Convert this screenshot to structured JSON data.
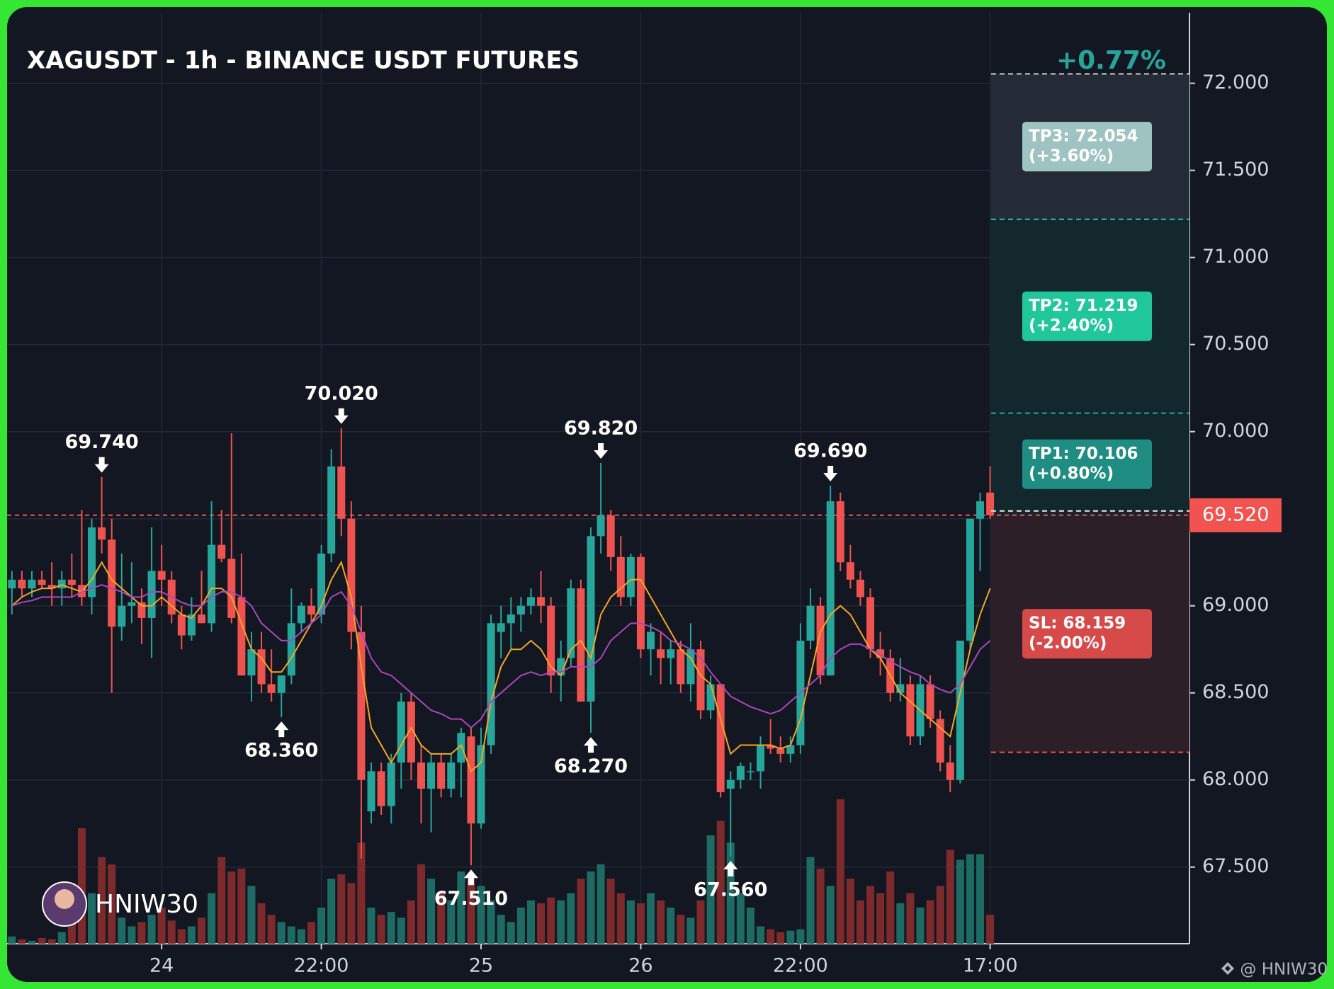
{
  "chart_data": {
    "type": "candlestick",
    "title": "XAGUSDT - 1h - BINANCE USDT FUTURES",
    "change": "+0.77%",
    "categories": [
      null,
      null,
      null,
      null,
      null,
      null,
      null,
      null,
      null,
      null,
      null,
      null,
      null,
      null,
      null,
      "24",
      null,
      null,
      null,
      null,
      null,
      null,
      null,
      null,
      null,
      null,
      null,
      null,
      null,
      null,
      null,
      "22:00",
      null,
      null,
      null,
      null,
      null,
      null,
      null,
      null,
      null,
      null,
      null,
      null,
      null,
      null,
      null,
      "25",
      null,
      null,
      null,
      null,
      null,
      null,
      null,
      null,
      null,
      null,
      null,
      null,
      null,
      null,
      null,
      "26",
      null,
      null,
      null,
      null,
      null,
      null,
      null,
      null,
      null,
      null,
      null,
      null,
      null,
      null,
      null,
      "22:00",
      null,
      null,
      null,
      null,
      null,
      null,
      null,
      null,
      null,
      null,
      null,
      null,
      null,
      null,
      null,
      null,
      null,
      null,
      "17:00"
    ],
    "open": [
      69.1,
      69.15,
      69.1,
      69.15,
      69.12,
      69.1,
      69.15,
      69.12,
      69.05,
      69.45,
      69.38,
      68.88,
      69.0,
      69.02,
      68.93,
      69.2,
      69.15,
      68.95,
      68.83,
      68.95,
      68.9,
      69.35,
      69.27,
      69.05,
      68.6,
      68.75,
      68.55,
      68.5,
      68.6,
      68.9,
      69.0,
      68.95,
      69.3,
      69.8,
      69.5,
      68.85,
      67.82,
      68.05,
      67.85,
      68.1,
      68.45,
      68.1,
      67.95,
      68.1,
      67.95,
      68.1,
      68.25,
      67.75,
      68.2,
      68.85,
      68.9,
      68.95,
      69.0,
      69.05,
      69.0,
      68.6,
      68.7,
      69.1,
      68.45,
      69.4,
      69.52,
      69.28,
      69.05,
      69.28,
      68.75,
      68.75,
      68.7,
      68.75,
      68.55,
      68.75,
      68.4,
      68.55,
      67.95,
      68.0,
      68.05,
      68.05,
      68.2,
      68.18,
      68.15,
      68.2,
      68.8,
      69.0,
      68.6,
      69.6,
      69.25,
      69.15,
      69.05,
      68.75,
      68.7,
      68.5,
      68.55,
      68.25,
      68.55,
      68.35,
      68.1,
      68.0,
      68.8,
      69.5,
      69.65
    ],
    "high": [
      69.2,
      69.2,
      69.2,
      69.2,
      69.25,
      69.2,
      69.3,
      69.55,
      69.5,
      69.74,
      69.5,
      69.3,
      69.25,
      69.1,
      69.45,
      69.35,
      69.2,
      69.0,
      69.05,
      69.2,
      69.6,
      69.55,
      69.99,
      69.3,
      68.85,
      68.85,
      68.75,
      68.6,
      69.1,
      69.02,
      69.1,
      69.35,
      69.9,
      70.02,
      69.6,
      69.0,
      68.1,
      68.1,
      68.15,
      68.5,
      68.5,
      68.2,
      68.15,
      68.15,
      68.15,
      68.3,
      68.3,
      68.3,
      68.95,
      69.0,
      69.05,
      69.05,
      69.1,
      69.2,
      69.05,
      68.8,
      69.15,
      69.15,
      69.45,
      69.82,
      69.55,
      69.4,
      69.3,
      69.3,
      68.9,
      68.85,
      68.8,
      68.8,
      68.9,
      68.8,
      68.6,
      68.55,
      68.05,
      68.1,
      68.1,
      68.25,
      68.35,
      68.25,
      68.25,
      68.9,
      69.1,
      69.05,
      69.69,
      69.65,
      69.35,
      69.2,
      69.1,
      68.85,
      68.75,
      68.7,
      68.6,
      68.6,
      68.6,
      68.4,
      68.2,
      68.8,
      69.5,
      69.65,
      69.8
    ],
    "low": [
      68.95,
      69.05,
      69.05,
      69.1,
      69.0,
      69.0,
      69.05,
      69.0,
      68.95,
      69.3,
      68.5,
      68.8,
      68.9,
      68.78,
      68.7,
      69.0,
      68.9,
      68.75,
      68.8,
      68.9,
      68.85,
      69.25,
      68.9,
      68.6,
      68.45,
      68.5,
      68.45,
      68.36,
      68.55,
      68.85,
      68.9,
      68.9,
      69.25,
      69.4,
      68.75,
      67.55,
      67.75,
      67.8,
      67.75,
      67.95,
      68.0,
      67.75,
      67.7,
      67.9,
      67.9,
      67.9,
      67.51,
      67.72,
      68.15,
      68.7,
      68.75,
      68.85,
      68.95,
      68.9,
      68.5,
      68.45,
      68.65,
      68.45,
      68.27,
      69.3,
      69.2,
      69.0,
      69.0,
      68.7,
      68.6,
      68.55,
      68.55,
      68.5,
      68.45,
      68.35,
      68.35,
      67.9,
      67.56,
      67.95,
      68.0,
      67.95,
      68.15,
      68.1,
      68.1,
      68.15,
      68.75,
      68.55,
      68.6,
      69.2,
      69.1,
      69.0,
      68.7,
      68.6,
      68.45,
      68.45,
      68.2,
      68.2,
      68.3,
      68.05,
      67.93,
      67.98,
      68.75,
      69.2,
      69.5
    ],
    "close": [
      69.15,
      69.1,
      69.15,
      69.12,
      69.1,
      69.15,
      69.12,
      69.05,
      69.45,
      69.38,
      68.88,
      69.0,
      69.02,
      68.93,
      69.2,
      69.15,
      68.95,
      68.83,
      68.95,
      68.9,
      69.35,
      69.27,
      68.93,
      68.6,
      68.75,
      68.55,
      68.5,
      68.6,
      68.9,
      69.0,
      68.95,
      69.3,
      69.8,
      69.5,
      68.85,
      68.0,
      68.05,
      67.85,
      68.1,
      68.45,
      68.1,
      67.95,
      68.1,
      67.95,
      68.1,
      68.27,
      67.75,
      68.2,
      68.9,
      68.9,
      68.95,
      69.0,
      69.05,
      69.0,
      68.6,
      68.7,
      69.1,
      68.45,
      69.4,
      69.52,
      69.28,
      69.05,
      69.28,
      68.75,
      68.85,
      68.7,
      68.75,
      68.55,
      68.75,
      68.4,
      68.55,
      67.93,
      68.0,
      68.08,
      68.05,
      68.2,
      68.18,
      68.15,
      68.2,
      68.8,
      69.0,
      68.6,
      69.6,
      69.25,
      69.15,
      69.05,
      68.75,
      68.7,
      68.5,
      68.55,
      68.25,
      68.55,
      68.35,
      68.1,
      68.0,
      68.8,
      69.5,
      69.6,
      69.52
    ],
    "up_color": "#26a69a",
    "down_color": "#ef5350",
    "ma": [
      {
        "color": "#f5a623",
        "values": [
          69.0,
          69.05,
          69.08,
          69.1,
          69.1,
          69.12,
          69.1,
          69.08,
          69.15,
          69.25,
          69.15,
          69.1,
          69.05,
          69.0,
          69.0,
          69.05,
          69.0,
          68.95,
          68.93,
          69.0,
          69.1,
          69.1,
          69.05,
          68.9,
          68.75,
          68.7,
          68.62,
          68.62,
          68.7,
          68.8,
          68.9,
          69.0,
          69.15,
          69.25,
          69.05,
          68.65,
          68.3,
          68.2,
          68.1,
          68.2,
          68.3,
          68.2,
          68.15,
          68.15,
          68.15,
          68.2,
          68.05,
          68.1,
          68.45,
          68.65,
          68.75,
          68.75,
          68.8,
          68.75,
          68.65,
          68.6,
          68.75,
          68.8,
          68.7,
          68.95,
          69.05,
          69.1,
          69.15,
          69.15,
          69.05,
          68.95,
          68.85,
          68.75,
          68.7,
          68.6,
          68.55,
          68.35,
          68.15,
          68.2,
          68.2,
          68.2,
          68.2,
          68.18,
          68.2,
          68.35,
          68.6,
          68.85,
          68.95,
          69.0,
          68.95,
          68.85,
          68.75,
          68.7,
          68.6,
          68.5,
          68.45,
          68.4,
          68.35,
          68.3,
          68.25,
          68.5,
          68.75,
          68.95,
          69.1
        ]
      },
      {
        "color": "#ab47bc",
        "values": [
          69.0,
          69.02,
          69.03,
          69.05,
          69.05,
          69.05,
          69.05,
          69.08,
          69.1,
          69.12,
          69.1,
          69.08,
          69.05,
          69.05,
          69.08,
          69.08,
          69.05,
          69.02,
          69.0,
          69.0,
          69.05,
          69.08,
          69.08,
          69.05,
          69.0,
          68.9,
          68.85,
          68.8,
          68.8,
          68.85,
          68.9,
          68.95,
          69.05,
          69.08,
          69.0,
          68.85,
          68.7,
          68.62,
          68.6,
          68.55,
          68.5,
          68.45,
          68.4,
          68.38,
          68.35,
          68.35,
          68.3,
          68.35,
          68.45,
          68.5,
          68.55,
          68.6,
          68.62,
          68.6,
          68.62,
          68.62,
          68.65,
          68.65,
          68.65,
          68.7,
          68.8,
          68.85,
          68.9,
          68.9,
          68.88,
          68.85,
          68.8,
          68.78,
          68.75,
          68.7,
          68.62,
          68.55,
          68.48,
          68.45,
          68.42,
          68.4,
          68.38,
          68.4,
          68.45,
          68.5,
          68.55,
          68.6,
          68.7,
          68.75,
          68.78,
          68.78,
          68.75,
          68.72,
          68.68,
          68.65,
          68.62,
          68.6,
          68.55,
          68.52,
          68.5,
          68.55,
          68.65,
          68.75,
          68.8
        ]
      }
    ],
    "volume": {
      "up_color": "#1d6b63",
      "down_color": "#7d2a2c",
      "values": [
        5,
        3,
        2,
        4,
        3,
        8,
        20,
        80,
        35,
        60,
        55,
        18,
        12,
        15,
        20,
        25,
        16,
        10,
        12,
        18,
        35,
        60,
        50,
        52,
        40,
        28,
        20,
        15,
        12,
        10,
        15,
        25,
        45,
        48,
        42,
        70,
        25,
        20,
        22,
        18,
        30,
        55,
        45,
        35,
        30,
        50,
        45,
        40,
        30,
        20,
        15,
        25,
        30,
        28,
        32,
        30,
        35,
        45,
        50,
        55,
        45,
        35,
        30,
        28,
        35,
        30,
        25,
        20,
        18,
        30,
        75,
        85,
        70,
        35,
        25,
        12,
        10,
        8,
        9,
        10,
        60,
        52,
        40,
        100,
        45,
        30,
        40,
        35,
        50,
        28,
        35,
        25,
        30,
        40,
        65,
        58,
        62,
        62,
        20
      ]
    },
    "ylim": [
      67.06,
      72.405
    ],
    "yticks": [
      {
        "value": 67.5,
        "label": "67.500"
      },
      {
        "value": 68,
        "label": "68.000"
      },
      {
        "value": 68.5,
        "label": "68.500"
      },
      {
        "value": 69,
        "label": "69.000"
      },
      {
        "value": 69.5,
        "label": "69.500"
      },
      {
        "value": 70,
        "label": "70.000"
      },
      {
        "value": 70.5,
        "label": "70.500"
      },
      {
        "value": 71,
        "label": "71.000"
      },
      {
        "value": 71.5,
        "label": "71.500"
      },
      {
        "value": 72,
        "label": "72.000"
      }
    ],
    "grid": true,
    "annotations": [
      {
        "index": 9,
        "kind": "high",
        "value": 69.74,
        "label": "69.740"
      },
      {
        "index": 33,
        "kind": "high",
        "value": 70.02,
        "label": "70.020"
      },
      {
        "index": 59,
        "kind": "high",
        "value": 69.82,
        "label": "69.820"
      },
      {
        "index": 82,
        "kind": "high",
        "value": 69.69,
        "label": "69.690"
      },
      {
        "index": 27,
        "kind": "low",
        "value": 68.36,
        "label": "68.360"
      },
      {
        "index": 46,
        "kind": "low",
        "value": 67.51,
        "label": "67.510"
      },
      {
        "index": 58,
        "kind": "low",
        "value": 68.27,
        "label": "68.270"
      },
      {
        "index": 72,
        "kind": "low",
        "value": 67.56,
        "label": "67.560"
      }
    ],
    "price_line": {
      "value": 69.52,
      "label": "69.520",
      "color": "#f05350"
    },
    "targets": [
      {
        "value": 72.054,
        "label": "TP3: 72.054",
        "pct": "(+3.60%)",
        "line": "#c8d0d8",
        "box": "#9ec3c1",
        "zone": "#242b36"
      },
      {
        "value": 71.219,
        "label": "TP2: 71.219",
        "pct": "(+2.40%)",
        "line": "#2bc4a0",
        "box": "#1fc79a",
        "zone": "#13282c"
      },
      {
        "value": 70.106,
        "label": "TP1: 70.106",
        "pct": "(+0.80%)",
        "line": "#26a69a",
        "box": "#1f8d82",
        "zone": "#13282c"
      }
    ],
    "stop": {
      "value": 68.159,
      "label": "SL: 68.159",
      "pct": "(-2.00%)",
      "line": "#ef5350",
      "box": "#d64a4a",
      "zone": "#2d1f27"
    },
    "watermark": "HNIW30",
    "footer": "@ HNIW30"
  }
}
